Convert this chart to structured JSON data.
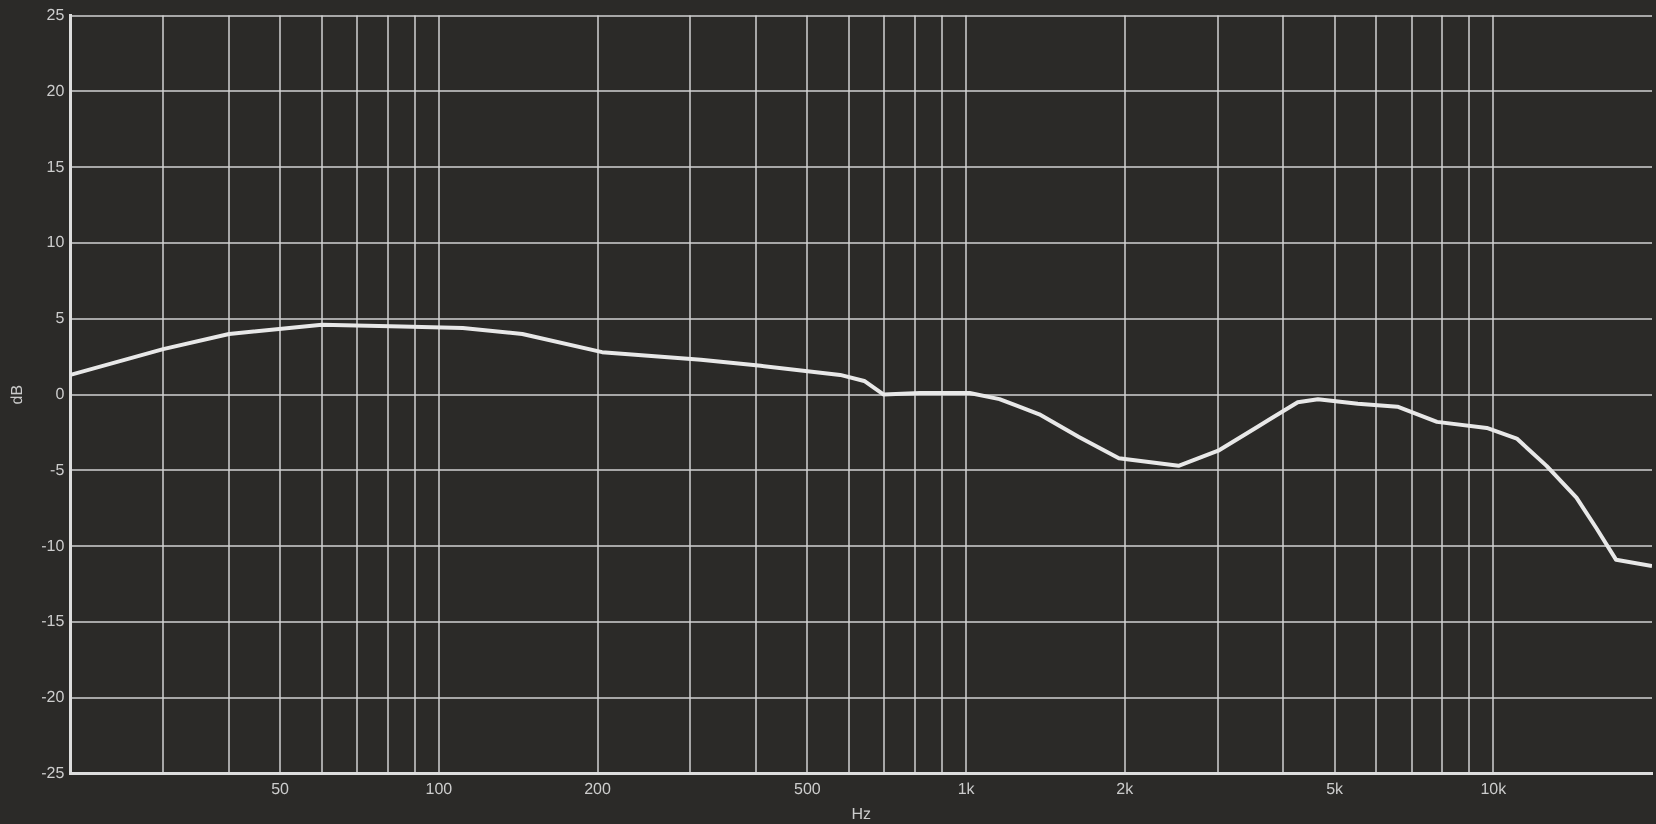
{
  "chart_data": {
    "type": "line",
    "xlabel": "Hz",
    "ylabel": "dB",
    "log": "x",
    "grid": true,
    "marker": "none",
    "line_style": "solid",
    "legend": false,
    "xlim": [
      20,
      20000
    ],
    "ylim": [
      -25,
      25
    ],
    "xticks": [
      {
        "value": 30,
        "label": null
      },
      {
        "value": 40,
        "label": null
      },
      50,
      {
        "value": 60,
        "label": null
      },
      {
        "value": 70,
        "label": null
      },
      {
        "value": 80,
        "label": null
      },
      {
        "value": 90,
        "label": null
      },
      100,
      200,
      {
        "value": 300,
        "label": null
      },
      {
        "value": 400,
        "label": null
      },
      500,
      {
        "value": 600,
        "label": null
      },
      {
        "value": 700,
        "label": null
      },
      {
        "value": 800,
        "label": null
      },
      {
        "value": 900,
        "label": null
      },
      {
        "value": 1000,
        "label": "1k"
      },
      {
        "value": 2000,
        "label": "2k"
      },
      {
        "value": 3000,
        "label": null
      },
      {
        "value": 4000,
        "label": null
      },
      {
        "value": 5000,
        "label": "5k"
      },
      {
        "value": 6000,
        "label": null
      },
      {
        "value": 7000,
        "label": null
      },
      {
        "value": 8000,
        "label": null
      },
      {
        "value": 9000,
        "label": null
      },
      {
        "value": 10000,
        "label": "10k"
      }
    ],
    "yticks": [
      -25,
      -20,
      -15,
      -10,
      -5,
      0,
      5,
      10,
      15,
      20,
      25
    ],
    "series": [
      {
        "color": "#e8e8e8",
        "x": [
          20,
          30,
          40,
          60,
          85,
          111,
          144,
          204,
          314,
          408,
          577,
          641,
          698,
          817,
          1016,
          1157,
          1377,
          1637,
          1949,
          2529,
          3008,
          3580,
          4257,
          4650,
          5535,
          6580,
          7820,
          9720,
          11080,
          12620,
          14380,
          15680,
          17100,
          20000
        ],
        "values": [
          1.3,
          3.0,
          4.0,
          4.6,
          4.5,
          4.4,
          4.0,
          2.8,
          2.3,
          1.9,
          1.3,
          0.9,
          0,
          0.1,
          0.1,
          -0.3,
          -1.3,
          -2.8,
          -4.2,
          -4.7,
          -3.7,
          -2.1,
          -0.5,
          -0.3,
          -0.6,
          -0.8,
          -1.8,
          -2.2,
          -2.9,
          -4.7,
          -6.8,
          -8.8,
          -10.9,
          -11.3
        ]
      }
    ]
  }
}
